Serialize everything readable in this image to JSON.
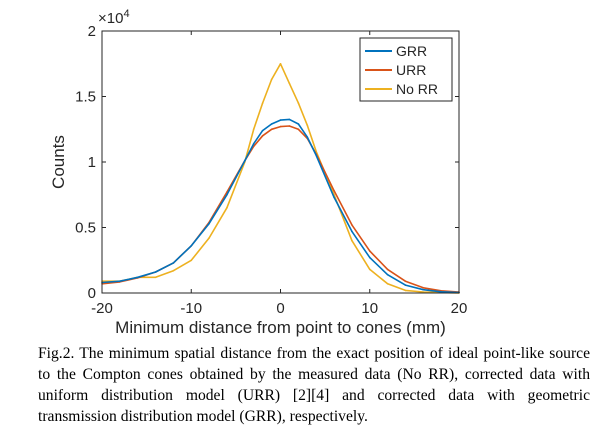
{
  "chart_data": {
    "type": "line",
    "title": "",
    "xlabel": "Minimum distance from point to cones (mm)",
    "ylabel": "Counts",
    "xlim": [
      -20,
      20
    ],
    "ylim": [
      0,
      20000
    ],
    "xticks": [
      -20,
      -10,
      0,
      10,
      20
    ],
    "xtick_labels": [
      "-20",
      "-10",
      "0",
      "10",
      "20"
    ],
    "yticks": [
      0,
      5000,
      10000,
      15000,
      20000
    ],
    "ytick_labels": [
      "0",
      "0.5",
      "1",
      "1.5",
      "2"
    ],
    "y_exponent_label": "×10",
    "y_exponent_power": "4",
    "grid": false,
    "legend_position": "top-right",
    "x": [
      -20,
      -18,
      -16,
      -14,
      -12,
      -10,
      -8,
      -6,
      -4,
      -3,
      -2,
      -1,
      0,
      1,
      2,
      3,
      4,
      6,
      8,
      10,
      12,
      14,
      16,
      18,
      20
    ],
    "series": [
      {
        "name": "GRR",
        "color": "#0072BD",
        "values": [
          800,
          900,
          1200,
          1600,
          2300,
          3600,
          5300,
          7500,
          10100,
          11400,
          12400,
          12900,
          13200,
          13250,
          12900,
          11900,
          10500,
          7300,
          4700,
          2700,
          1400,
          600,
          250,
          90,
          30
        ]
      },
      {
        "name": "URR",
        "color": "#D95319",
        "values": [
          700,
          850,
          1150,
          1600,
          2300,
          3600,
          5400,
          7700,
          10100,
          11200,
          12000,
          12500,
          12700,
          12750,
          12500,
          11800,
          10600,
          7800,
          5200,
          3200,
          1800,
          900,
          400,
          170,
          70
        ]
      },
      {
        "name": "No RR",
        "color": "#EDB120",
        "values": [
          900,
          900,
          1200,
          1200,
          1700,
          2500,
          4200,
          6500,
          10000,
          12500,
          14500,
          16300,
          17500,
          16000,
          14500,
          12800,
          10800,
          7500,
          4000,
          1800,
          700,
          200,
          80,
          30,
          10
        ]
      }
    ]
  },
  "caption": "Fig.2. The minimum spatial distance from the exact position of ideal point-like source to the Compton cones obtained by the measured data (No RR), corrected data with uniform distribution model (URR) [2][4] and corrected data with geometric transmission distribution model (GRR), respectively."
}
